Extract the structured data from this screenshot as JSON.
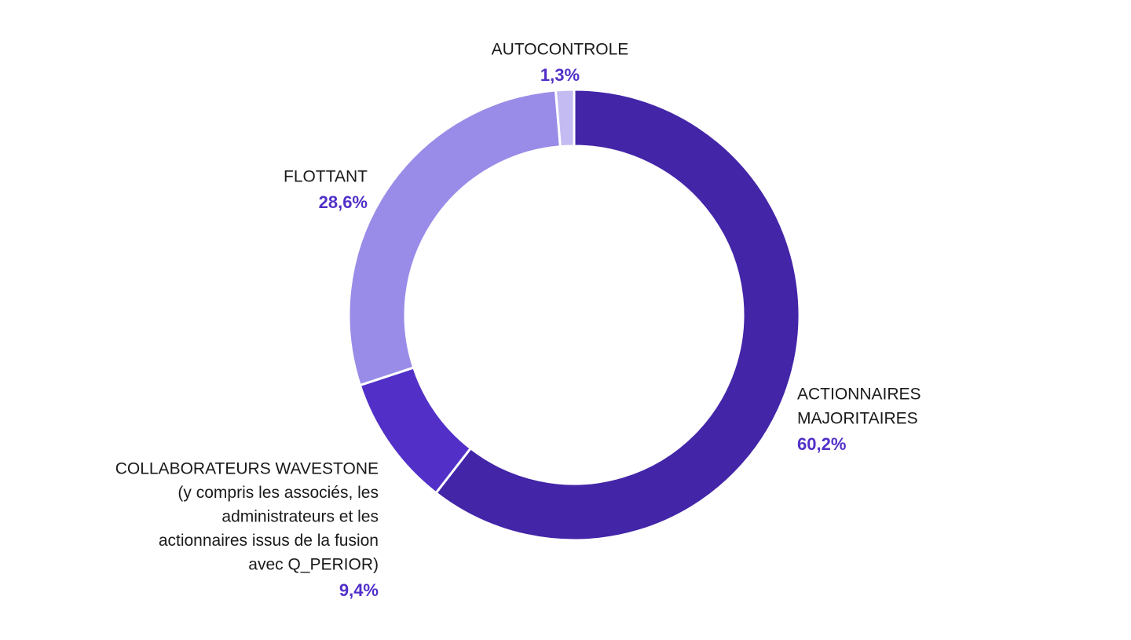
{
  "chart_data": {
    "type": "pie",
    "variant": "donut",
    "start_angle_deg": 0,
    "direction": "clockwise",
    "slices": [
      {
        "name_lines": [
          "ACTIONNAIRES",
          "MAJORITAIRES"
        ],
        "value": 60.2,
        "value_label": "60,2%",
        "color": "#4325A8"
      },
      {
        "name_lines": [
          "COLLABORATEURS WAVESTONE",
          "(y compris les associés, les",
          "administrateurs et les",
          "actionnaires issus de la fusion",
          "avec Q_PERIOR)"
        ],
        "value": 9.4,
        "value_label": "9,4%",
        "color": "#5230C8"
      },
      {
        "name_lines": [
          "FLOTTANT"
        ],
        "value": 28.6,
        "value_label": "28,6%",
        "color": "#998CE8"
      },
      {
        "name_lines": [
          "AUTOCONTROLE"
        ],
        "value": 1.3,
        "value_label": "1,3%",
        "color": "#C4BBF2"
      }
    ],
    "label_value_color": "#5230C8",
    "label_name_color": "#1a1a1a"
  }
}
